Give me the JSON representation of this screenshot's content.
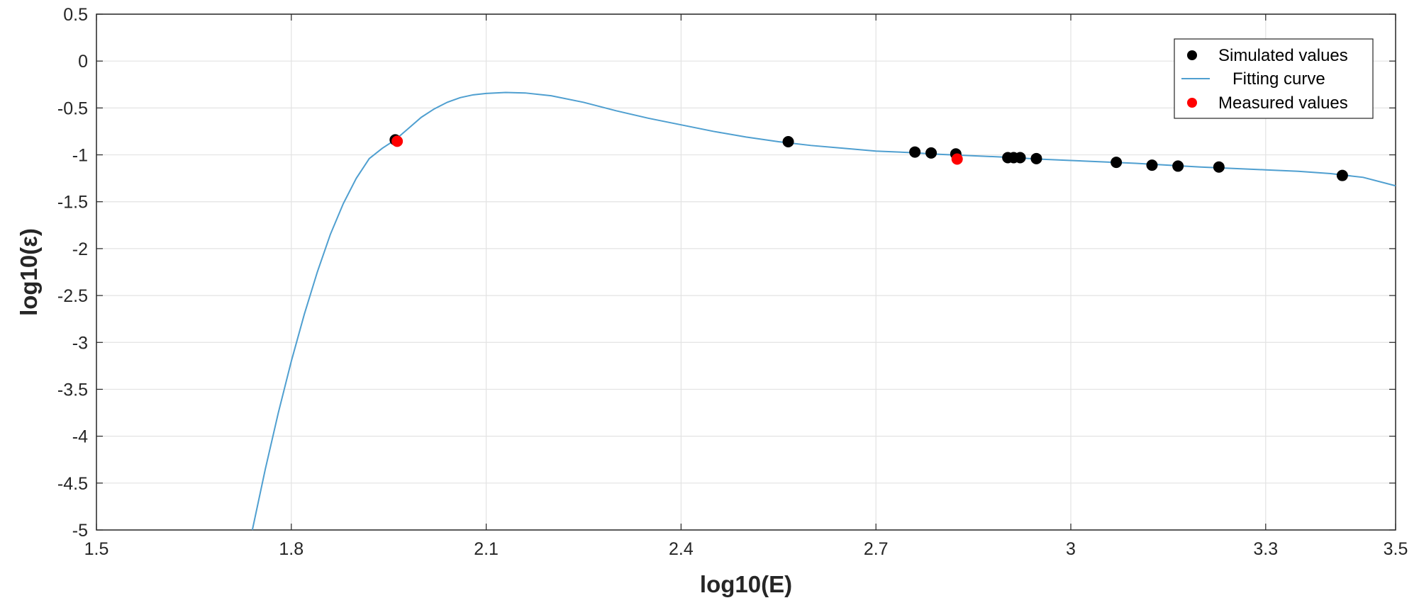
{
  "chart_data": {
    "type": "scatter",
    "title": "",
    "xlabel": "log10(E)",
    "ylabel": "log10(ε)",
    "xlim": [
      1.5,
      3.5
    ],
    "ylim": [
      -5,
      0.5
    ],
    "x_ticks": [
      1.5,
      1.8,
      2.1,
      2.4,
      2.7,
      3.0,
      3.3,
      3.5
    ],
    "x_tick_labels": [
      "1.5",
      "1.8",
      "2.1",
      "2.4",
      "2.7",
      "3",
      "3.3",
      "3.5"
    ],
    "y_ticks": [
      0.5,
      0,
      -0.5,
      -1,
      -1.5,
      -2,
      -2.5,
      -3,
      -3.5,
      -4,
      -4.5,
      -5
    ],
    "y_tick_labels": [
      "0.5",
      "0",
      "-0.5",
      "-1",
      "-1.5",
      "-2",
      "-2.5",
      "-3",
      "-3.5",
      "-4",
      "-4.5",
      "-5"
    ],
    "grid": true,
    "legend_position": "top-right",
    "series": [
      {
        "name": "Simulated values",
        "kind": "scatter",
        "color": "#000000",
        "points": [
          [
            1.96,
            -0.84
          ],
          [
            2.565,
            -0.86
          ],
          [
            2.76,
            -0.97
          ],
          [
            2.785,
            -0.98
          ],
          [
            2.823,
            -0.99
          ],
          [
            2.903,
            -1.03
          ],
          [
            2.912,
            -1.03
          ],
          [
            2.922,
            -1.03
          ],
          [
            2.947,
            -1.04
          ],
          [
            3.07,
            -1.08
          ],
          [
            3.125,
            -1.11
          ],
          [
            3.165,
            -1.12
          ],
          [
            3.228,
            -1.13
          ],
          [
            3.418,
            -1.22
          ]
        ]
      },
      {
        "name": "Fitting curve",
        "kind": "line",
        "color": "#4f9fd0",
        "points": [
          [
            1.74,
            -5.0
          ],
          [
            1.76,
            -4.35
          ],
          [
            1.78,
            -3.75
          ],
          [
            1.8,
            -3.2
          ],
          [
            1.82,
            -2.7
          ],
          [
            1.84,
            -2.25
          ],
          [
            1.86,
            -1.85
          ],
          [
            1.88,
            -1.52
          ],
          [
            1.9,
            -1.25
          ],
          [
            1.92,
            -1.04
          ],
          [
            1.94,
            -0.93
          ],
          [
            1.96,
            -0.84
          ],
          [
            1.98,
            -0.72
          ],
          [
            2.0,
            -0.6
          ],
          [
            2.02,
            -0.51
          ],
          [
            2.04,
            -0.44
          ],
          [
            2.06,
            -0.39
          ],
          [
            2.08,
            -0.36
          ],
          [
            2.1,
            -0.345
          ],
          [
            2.13,
            -0.335
          ],
          [
            2.16,
            -0.34
          ],
          [
            2.2,
            -0.37
          ],
          [
            2.25,
            -0.44
          ],
          [
            2.3,
            -0.53
          ],
          [
            2.35,
            -0.61
          ],
          [
            2.4,
            -0.68
          ],
          [
            2.45,
            -0.75
          ],
          [
            2.5,
            -0.81
          ],
          [
            2.55,
            -0.86
          ],
          [
            2.6,
            -0.9
          ],
          [
            2.65,
            -0.93
          ],
          [
            2.7,
            -0.96
          ],
          [
            2.75,
            -0.975
          ],
          [
            2.8,
            -0.995
          ],
          [
            2.85,
            -1.01
          ],
          [
            2.9,
            -1.025
          ],
          [
            2.95,
            -1.045
          ],
          [
            3.0,
            -1.06
          ],
          [
            3.05,
            -1.075
          ],
          [
            3.1,
            -1.09
          ],
          [
            3.15,
            -1.11
          ],
          [
            3.2,
            -1.13
          ],
          [
            3.25,
            -1.145
          ],
          [
            3.3,
            -1.16
          ],
          [
            3.35,
            -1.175
          ],
          [
            3.4,
            -1.2
          ],
          [
            3.45,
            -1.24
          ],
          [
            3.5,
            -1.33
          ]
        ]
      },
      {
        "name": "Measured values",
        "kind": "scatter",
        "color": "#ff0000",
        "points": [
          [
            1.963,
            -0.855
          ],
          [
            2.825,
            -1.045
          ]
        ]
      }
    ]
  }
}
